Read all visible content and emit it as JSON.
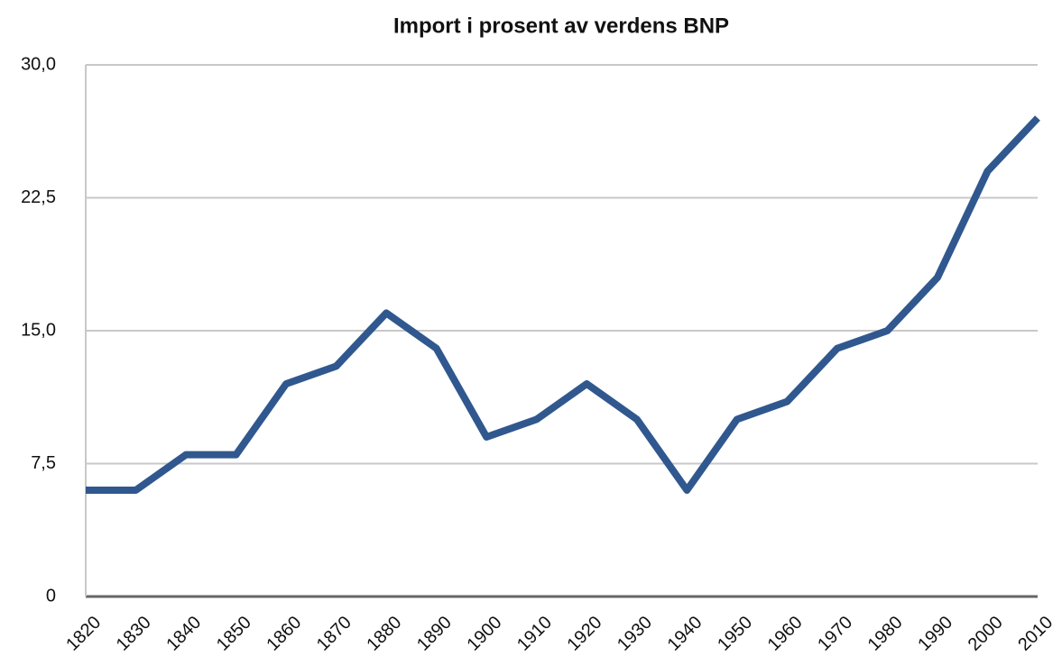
{
  "chart_data": {
    "type": "line",
    "title": "Import i prosent av verdens BNP",
    "categories": [
      "1820",
      "1830",
      "1840",
      "1850",
      "1860",
      "1870",
      "1880",
      "1890",
      "1900",
      "1910",
      "1920",
      "1930",
      "1940",
      "1950",
      "1960",
      "1970",
      "1980",
      "1990",
      "2000",
      "2010"
    ],
    "series": [
      {
        "name": "Import i prosent av verdens BNP",
        "color": "#30588f",
        "values": [
          6,
          6,
          8,
          8,
          12,
          13,
          16,
          14,
          9,
          10,
          12,
          10,
          6,
          10,
          11,
          14,
          15,
          18,
          24,
          27
        ]
      }
    ],
    "ylim": [
      0,
      30
    ],
    "yticks": [
      0,
      {
        "value": 7.5,
        "label": "7,5"
      },
      {
        "value": 15,
        "label": "15,0"
      },
      {
        "value": 22.5,
        "label": "22,5"
      },
      {
        "value": 30,
        "label": "30,0"
      }
    ],
    "grid": true,
    "legend": false
  }
}
